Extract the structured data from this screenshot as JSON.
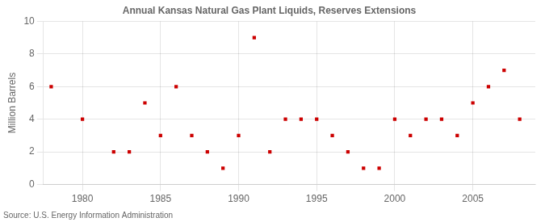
{
  "chart_data": {
    "type": "scatter",
    "title": "Annual Kansas Natural Gas Plant Liquids, Reserves Extensions",
    "ylabel": "Million Barrels",
    "source": "Source: U.S. Energy Information Administration",
    "x": [
      1978,
      1980,
      1982,
      1983,
      1984,
      1985,
      1986,
      1987,
      1988,
      1989,
      1990,
      1991,
      1992,
      1993,
      1994,
      1995,
      1996,
      1997,
      1998,
      1999,
      2000,
      2001,
      2002,
      2003,
      2004,
      2005,
      2006,
      2007,
      2008
    ],
    "values": [
      6,
      4,
      2,
      2,
      5,
      3,
      6,
      3,
      2,
      1,
      3,
      9,
      2,
      4,
      4,
      4,
      3,
      2,
      1,
      1,
      4,
      3,
      4,
      4,
      3,
      5,
      6,
      7,
      4
    ],
    "color": "#cc0000",
    "marker": "square",
    "xlim": [
      1977.5,
      2009
    ],
    "xticks": [
      1980,
      1985,
      1990,
      1995,
      2000,
      2005
    ],
    "ylim": [
      0,
      10
    ],
    "yticks": [
      0,
      2,
      4,
      6,
      8,
      10
    ],
    "grid": true
  }
}
